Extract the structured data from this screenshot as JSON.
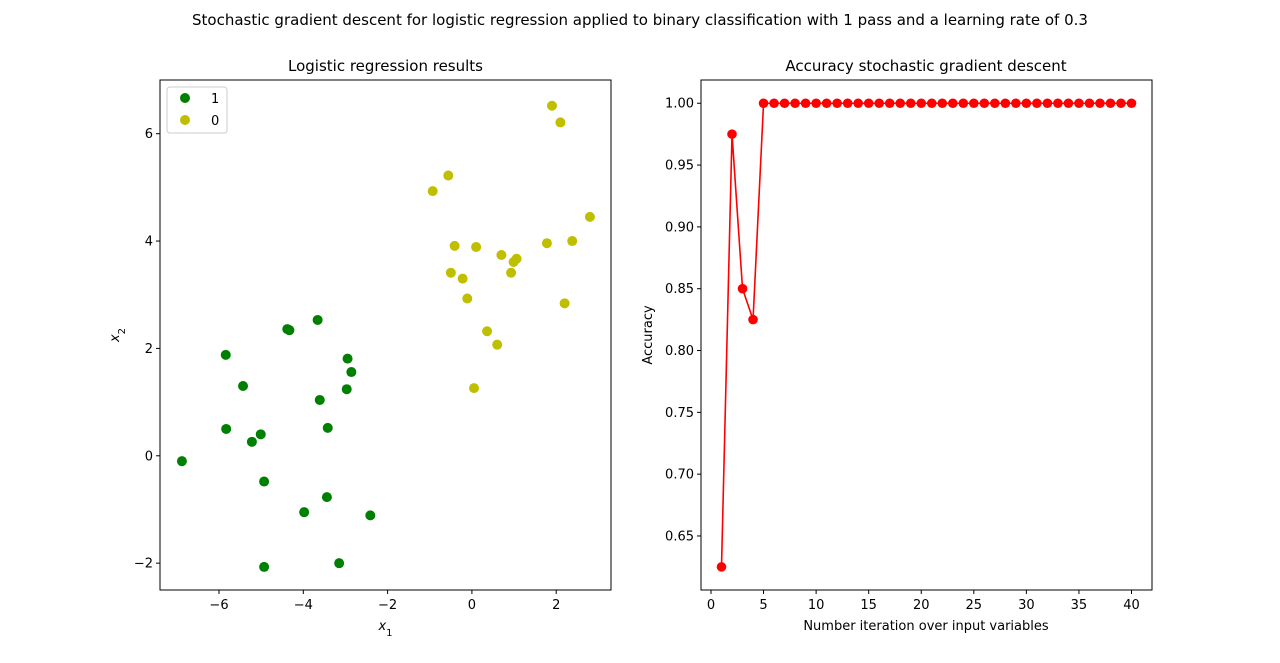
{
  "figure": {
    "suptitle": "Stochastic gradient descent for logistic regression applied to binary classification with 1 pass and a learning rate of 0.3"
  },
  "chart_data": [
    {
      "type": "scatter",
      "title": "Logistic regression results",
      "xlabel": "x",
      "xlabel_sub": "1",
      "ylabel": "x",
      "ylabel_sub": "2",
      "xlim": [
        -7.4,
        3.3
      ],
      "ylim": [
        -2.5,
        7.0
      ],
      "xticks": [
        -6,
        -4,
        -2,
        0,
        2
      ],
      "yticks": [
        -2,
        0,
        2,
        4,
        6
      ],
      "xtick_labels": [
        "−6",
        "−4",
        "−2",
        "0",
        "2"
      ],
      "ytick_labels": [
        "−2",
        "0",
        "2",
        "4",
        "6"
      ],
      "grid": false,
      "legend_position": "top-left",
      "series": [
        {
          "name": "1",
          "color": "#008000",
          "points": [
            [
              -6.88,
              -0.1
            ],
            [
              -5.84,
              1.88
            ],
            [
              -5.83,
              0.5
            ],
            [
              -5.43,
              1.3
            ],
            [
              -5.22,
              0.26
            ],
            [
              -5.01,
              0.4
            ],
            [
              -4.93,
              -0.48
            ],
            [
              -4.93,
              -2.07
            ],
            [
              -4.38,
              2.36
            ],
            [
              -4.33,
              2.34
            ],
            [
              -3.98,
              -1.05
            ],
            [
              -3.66,
              2.53
            ],
            [
              -3.61,
              1.04
            ],
            [
              -3.42,
              0.52
            ],
            [
              -3.44,
              -0.77
            ],
            [
              -3.15,
              -2.0
            ],
            [
              -2.97,
              1.24
            ],
            [
              -2.95,
              1.81
            ],
            [
              -2.86,
              1.56
            ],
            [
              -2.41,
              -1.11
            ]
          ]
        },
        {
          "name": "0",
          "color": "#bfbf00",
          "points": [
            [
              -0.93,
              4.93
            ],
            [
              -0.56,
              5.22
            ],
            [
              -0.5,
              3.41
            ],
            [
              -0.41,
              3.91
            ],
            [
              -0.22,
              3.3
            ],
            [
              -0.11,
              2.93
            ],
            [
              0.05,
              1.26
            ],
            [
              0.1,
              3.89
            ],
            [
              0.36,
              2.32
            ],
            [
              0.6,
              2.07
            ],
            [
              0.7,
              3.74
            ],
            [
              0.93,
              3.41
            ],
            [
              0.99,
              3.61
            ],
            [
              1.06,
              3.67
            ],
            [
              1.78,
              3.96
            ],
            [
              1.9,
              6.52
            ],
            [
              2.1,
              6.21
            ],
            [
              2.2,
              2.84
            ],
            [
              2.38,
              4.0
            ],
            [
              2.8,
              4.45
            ]
          ]
        }
      ]
    },
    {
      "type": "line",
      "title": "Accuracy stochastic gradient descent",
      "xlabel": "Number iteration over input variables",
      "ylabel": "Accuracy",
      "xlim": [
        -0.95,
        41.95
      ],
      "ylim": [
        0.6063,
        1.0188
      ],
      "xticks": [
        0,
        5,
        10,
        15,
        20,
        25,
        30,
        35,
        40
      ],
      "yticks": [
        0.65,
        0.7,
        0.75,
        0.8,
        0.85,
        0.9,
        0.95,
        1.0
      ],
      "xtick_labels": [
        "0",
        "5",
        "10",
        "15",
        "20",
        "25",
        "30",
        "35",
        "40"
      ],
      "ytick_labels": [
        "0.65",
        "0.70",
        "0.75",
        "0.80",
        "0.85",
        "0.90",
        "0.95",
        "1.00"
      ],
      "grid": false,
      "series": [
        {
          "name": "",
          "color": "#ff0000",
          "marker": "circle",
          "x": [
            1,
            2,
            3,
            4,
            5,
            6,
            7,
            8,
            9,
            10,
            11,
            12,
            13,
            14,
            15,
            16,
            17,
            18,
            19,
            20,
            21,
            22,
            23,
            24,
            25,
            26,
            27,
            28,
            29,
            30,
            31,
            32,
            33,
            34,
            35,
            36,
            37,
            38,
            39,
            40
          ],
          "y": [
            0.625,
            0.975,
            0.85,
            0.825,
            1.0,
            1.0,
            1.0,
            1.0,
            1.0,
            1.0,
            1.0,
            1.0,
            1.0,
            1.0,
            1.0,
            1.0,
            1.0,
            1.0,
            1.0,
            1.0,
            1.0,
            1.0,
            1.0,
            1.0,
            1.0,
            1.0,
            1.0,
            1.0,
            1.0,
            1.0,
            1.0,
            1.0,
            1.0,
            1.0,
            1.0,
            1.0,
            1.0,
            1.0,
            1.0,
            1.0
          ]
        }
      ]
    }
  ]
}
